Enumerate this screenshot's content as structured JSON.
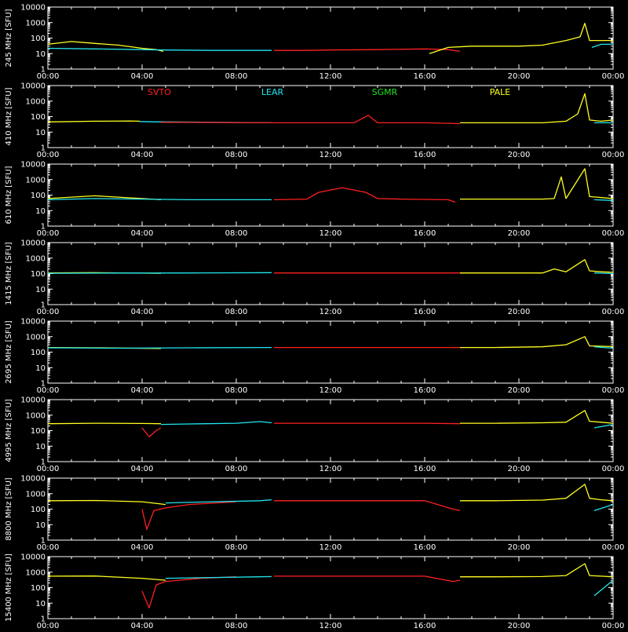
{
  "chart_data": {
    "type": "line",
    "y_scale": "log",
    "ylim": [
      1,
      10000
    ],
    "y_tick_labels": [
      "1",
      "10",
      "100",
      "1000",
      "10000"
    ],
    "x_tick_labels": [
      "00:00",
      "04:00",
      "08:00",
      "12:00",
      "16:00",
      "20:00",
      "00:00"
    ],
    "x_ticks_hours": [
      0,
      4,
      8,
      12,
      16,
      20,
      24
    ],
    "legend": [
      {
        "name": "SVTO",
        "color": "#ff2020"
      },
      {
        "name": "LEAR",
        "color": "#20e6f0"
      },
      {
        "name": "SGMR",
        "color": "#20e020"
      },
      {
        "name": "PALE",
        "color": "#ffff20"
      }
    ],
    "station_colors": {
      "SVTO": "#ff2020",
      "LEAR": "#20e6f0",
      "SGMR": "#20e020",
      "PALE": "#ffff20"
    },
    "panels": [
      {
        "ylabel": "245 MHz [SFU]",
        "series": [
          {
            "station": "PALE",
            "x": [
              0,
              1,
              2,
              3,
              4,
              4.6,
              4.9
            ],
            "y": [
              40,
              60,
              45,
              35,
              22,
              18,
              14
            ]
          },
          {
            "station": "LEAR",
            "x": [
              0,
              2,
              4,
              5,
              7,
              9.5
            ],
            "y": [
              22,
              20,
              18,
              17,
              16,
              16
            ]
          },
          {
            "station": "SVTO",
            "x": [
              9.6,
              11,
              12,
              14,
              16,
              17,
              17.5
            ],
            "y": [
              16,
              16,
              17,
              18,
              20,
              18,
              14
            ]
          },
          {
            "station": "PALE",
            "x": [
              16.2,
              17,
              18,
              20,
              21,
              22,
              22.6,
              22.8,
              23,
              24
            ],
            "y": [
              10,
              25,
              30,
              30,
              35,
              70,
              120,
              900,
              70,
              70
            ]
          },
          {
            "station": "LEAR",
            "x": [
              23.1,
              23.5,
              24
            ],
            "y": [
              25,
              40,
              40
            ]
          }
        ]
      },
      {
        "ylabel": "410 MHz [SFU]",
        "series": [
          {
            "station": "PALE",
            "x": [
              0,
              2,
              3.5,
              3.9
            ],
            "y": [
              45,
              50,
              52,
              50
            ]
          },
          {
            "station": "LEAR",
            "x": [
              3.9,
              4.5,
              9.5
            ],
            "y": [
              48,
              46,
              40
            ]
          },
          {
            "station": "SVTO",
            "x": [
              4.8,
              6,
              9.5,
              11,
              13,
              13.6,
              14,
              16,
              17.5
            ],
            "y": [
              42,
              42,
              40,
              40,
              40,
              120,
              40,
              40,
              35
            ]
          },
          {
            "station": "PALE",
            "x": [
              17.5,
              19,
              21,
              22,
              22.5,
              22.8,
              23,
              23.5,
              24
            ],
            "y": [
              40,
              40,
              40,
              50,
              150,
              3000,
              60,
              50,
              60
            ]
          },
          {
            "station": "LEAR",
            "x": [
              23.2,
              24
            ],
            "y": [
              40,
              40
            ]
          }
        ]
      },
      {
        "ylabel": "610 MHz [SFU]",
        "series": [
          {
            "station": "PALE",
            "x": [
              0,
              2,
              4,
              4.8
            ],
            "y": [
              60,
              90,
              60,
              50
            ]
          },
          {
            "station": "LEAR",
            "x": [
              0,
              2,
              4,
              6,
              9.5
            ],
            "y": [
              50,
              60,
              55,
              50,
              50
            ]
          },
          {
            "station": "SVTO",
            "x": [
              9.6,
              11,
              11.5,
              12.5,
              13.5,
              14,
              15,
              17,
              17.3
            ],
            "y": [
              50,
              55,
              150,
              300,
              150,
              60,
              55,
              50,
              35
            ]
          },
          {
            "station": "PALE",
            "x": [
              17.5,
              19,
              21,
              21.5,
              21.8,
              22,
              22.8,
              23,
              24
            ],
            "y": [
              55,
              55,
              55,
              60,
              1500,
              60,
              5000,
              80,
              60
            ]
          },
          {
            "station": "LEAR",
            "x": [
              23.2,
              24
            ],
            "y": [
              50,
              45
            ]
          }
        ]
      },
      {
        "ylabel": "1415 MHz [SFU]",
        "series": [
          {
            "station": "PALE",
            "x": [
              0,
              2,
              4.8
            ],
            "y": [
              110,
              115,
              105
            ]
          },
          {
            "station": "LEAR",
            "x": [
              0,
              3,
              6,
              9.5
            ],
            "y": [
              105,
              108,
              110,
              115
            ]
          },
          {
            "station": "SVTO",
            "x": [
              9.6,
              12,
              14,
              16,
              17.5
            ],
            "y": [
              110,
              110,
              110,
              110,
              110
            ]
          },
          {
            "station": "PALE",
            "x": [
              17.5,
              19,
              21,
              21.5,
              22,
              22.8,
              23,
              23.5,
              24
            ],
            "y": [
              110,
              110,
              110,
              200,
              130,
              800,
              150,
              130,
              120
            ]
          },
          {
            "station": "LEAR",
            "x": [
              23.2,
              24
            ],
            "y": [
              110,
              100
            ]
          }
        ]
      },
      {
        "ylabel": "2695 MHz [SFU]",
        "series": [
          {
            "station": "PALE",
            "x": [
              0,
              2,
              4.8
            ],
            "y": [
              200,
              190,
              170
            ]
          },
          {
            "station": "LEAR",
            "x": [
              0,
              3,
              6,
              9.5
            ],
            "y": [
              190,
              180,
              190,
              200
            ]
          },
          {
            "station": "SVTO",
            "x": [
              9.6,
              12,
              14,
              16,
              17.5
            ],
            "y": [
              200,
              200,
              200,
              200,
              200
            ]
          },
          {
            "station": "PALE",
            "x": [
              17.5,
              19,
              21,
              22,
              22.8,
              23,
              23.5,
              24
            ],
            "y": [
              200,
              200,
              220,
              300,
              1000,
              250,
              240,
              230
            ]
          },
          {
            "station": "LEAR",
            "x": [
              23.2,
              24
            ],
            "y": [
              220,
              180
            ]
          }
        ]
      },
      {
        "ylabel": "4995 MHz [SFU]",
        "series": [
          {
            "station": "PALE",
            "x": [
              0,
              2,
              4,
              4.8
            ],
            "y": [
              280,
              300,
              290,
              280
            ]
          },
          {
            "station": "SVTO",
            "x": [
              4,
              4.3,
              4.6,
              4.8
            ],
            "y": [
              150,
              40,
              100,
              150
            ]
          },
          {
            "station": "LEAR",
            "x": [
              4.8,
              6,
              8,
              9,
              9.5
            ],
            "y": [
              250,
              270,
              300,
              380,
              320
            ]
          },
          {
            "station": "SVTO",
            "x": [
              9.6,
              12,
              14,
              16,
              17.5
            ],
            "y": [
              300,
              300,
              300,
              300,
              280
            ]
          },
          {
            "station": "PALE",
            "x": [
              17.5,
              19,
              21,
              22,
              22.8,
              23,
              23.5,
              24
            ],
            "y": [
              300,
              300,
              320,
              350,
              2000,
              400,
              350,
              300
            ]
          },
          {
            "station": "LEAR",
            "x": [
              23.2,
              24
            ],
            "y": [
              150,
              250
            ]
          }
        ]
      },
      {
        "ylabel": "8800 MHz [SFU]",
        "series": [
          {
            "station": "PALE",
            "x": [
              0,
              2,
              4,
              5
            ],
            "y": [
              350,
              360,
              300,
              200
            ]
          },
          {
            "station": "SVTO",
            "x": [
              4,
              4.2,
              4.5,
              5,
              6,
              8
            ],
            "y": [
              100,
              5,
              80,
              120,
              200,
              300
            ]
          },
          {
            "station": "LEAR",
            "x": [
              5,
              7,
              9,
              9.5
            ],
            "y": [
              250,
              300,
              350,
              400
            ]
          },
          {
            "station": "SVTO",
            "x": [
              9.6,
              12,
              14,
              16,
              17.2,
              17.5
            ],
            "y": [
              350,
              350,
              350,
              350,
              100,
              80
            ]
          },
          {
            "station": "PALE",
            "x": [
              17.5,
              19,
              21,
              22,
              22.8,
              23,
              23.5,
              24
            ],
            "y": [
              350,
              350,
              380,
              500,
              4000,
              500,
              400,
              350
            ]
          },
          {
            "station": "LEAR",
            "x": [
              23.2,
              24
            ],
            "y": [
              80,
              200
            ]
          }
        ]
      },
      {
        "ylabel": "15400 MHz [SFU]",
        "series": [
          {
            "station": "PALE",
            "x": [
              0,
              2,
              4,
              5
            ],
            "y": [
              550,
              560,
              400,
              300
            ]
          },
          {
            "station": "SVTO",
            "x": [
              4,
              4.3,
              4.6,
              5,
              6.5,
              8
            ],
            "y": [
              60,
              5,
              150,
              250,
              400,
              500
            ]
          },
          {
            "station": "LEAR",
            "x": [
              5,
              7,
              9,
              9.5
            ],
            "y": [
              400,
              450,
              500,
              520
            ]
          },
          {
            "station": "SVTO",
            "x": [
              9.6,
              12,
              14,
              16,
              17.2,
              17.5
            ],
            "y": [
              550,
              550,
              550,
              550,
              250,
              300
            ]
          },
          {
            "station": "PALE",
            "x": [
              17.5,
              19,
              21,
              22,
              22.8,
              23,
              23.5,
              24
            ],
            "y": [
              500,
              500,
              520,
              600,
              3500,
              600,
              550,
              500
            ]
          },
          {
            "station": "LEAR",
            "x": [
              23.2,
              24
            ],
            "y": [
              30,
              300
            ]
          }
        ]
      }
    ]
  }
}
